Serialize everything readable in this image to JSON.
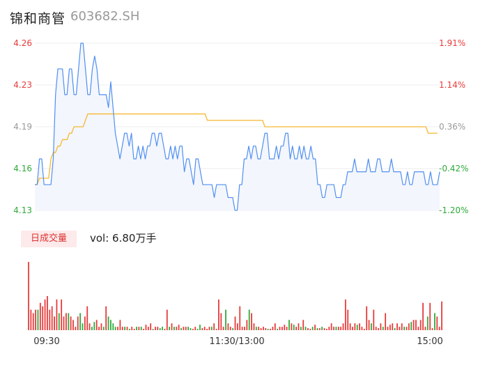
{
  "header": {
    "name": "锦和商管",
    "code": "603682.SH"
  },
  "colors": {
    "price": "#4f8ff0",
    "avg": "#f5b830",
    "up": "#e83a3a",
    "down": "#2eaa3a",
    "grid": "#eeeeee",
    "text_neutral": "#999999"
  },
  "volume_panel": {
    "badge": "日成交量",
    "vol_label": "vol: 6.80万手"
  },
  "chart_data": [
    {
      "type": "line",
      "title": "",
      "y_left_ticks": [
        "4.26",
        "4.23",
        "4.19",
        "4.16",
        "4.13"
      ],
      "y_right_ticks": [
        "1.91%",
        "1.14%",
        "0.36%",
        "-0.42%",
        "-1.20%"
      ],
      "ylim": [
        4.13,
        4.26
      ],
      "x_tick_labels": [
        "09:30",
        "11:30/13:00",
        "15:00"
      ],
      "series": [
        {
          "values": [
            4.15,
            4.15,
            4.17,
            4.17,
            4.15,
            4.15,
            4.15,
            4.15,
            4.17,
            4.22,
            4.24,
            4.24,
            4.24,
            4.22,
            4.22,
            4.24,
            4.24,
            4.22,
            4.22,
            4.24,
            4.26,
            4.26,
            4.24,
            4.22,
            4.22,
            4.24,
            4.25,
            4.24,
            4.22,
            4.22,
            4.22,
            4.22,
            4.21,
            4.23,
            4.21,
            4.19,
            4.18,
            4.17,
            4.18,
            4.19,
            4.19,
            4.18,
            4.19,
            4.17,
            4.17,
            4.18,
            4.17,
            4.18,
            4.17,
            4.18,
            4.18,
            4.19,
            4.19,
            4.18,
            4.19,
            4.19,
            4.18,
            4.17,
            4.17,
            4.18,
            4.17,
            4.18,
            4.17,
            4.18,
            4.18,
            4.16,
            4.17,
            4.17,
            4.16,
            4.15,
            4.17,
            4.17,
            4.16,
            4.15,
            4.15,
            4.15,
            4.15,
            4.15,
            4.14,
            4.15,
            4.15,
            4.15,
            4.15,
            4.15,
            4.14,
            4.14,
            4.14,
            4.13,
            4.13,
            4.15,
            4.15,
            4.17,
            4.17,
            4.18,
            4.17,
            4.18,
            4.18,
            4.17,
            4.17,
            4.18,
            4.19,
            4.19,
            4.17,
            4.17,
            4.17,
            4.18,
            4.17,
            4.18,
            4.18,
            4.19,
            4.19,
            4.17,
            4.18,
            4.17,
            4.17,
            4.18,
            4.17,
            4.18,
            4.17,
            4.17,
            4.18,
            4.17,
            4.17,
            4.15,
            4.15,
            4.14,
            4.14,
            4.15,
            4.15,
            4.15,
            4.15,
            4.14,
            4.14,
            4.14,
            4.15,
            4.15,
            4.16,
            4.16,
            4.16,
            4.17,
            4.16,
            4.16,
            4.16,
            4.16,
            4.16,
            4.17,
            4.16,
            4.16,
            4.16,
            4.17,
            4.17,
            4.16,
            4.16,
            4.16,
            4.16,
            4.17,
            4.16,
            4.16,
            4.16,
            4.16,
            4.15,
            4.15,
            4.16,
            4.15,
            4.15,
            4.16,
            4.16,
            4.16,
            4.16,
            4.16,
            4.15,
            4.15,
            4.16,
            4.15,
            4.15,
            4.15,
            4.16
          ],
          "color": "#4f8ff0"
        },
        {
          "values": [
            4.15,
            4.15,
            4.155,
            4.155,
            4.155,
            4.155,
            4.155,
            4.17,
            4.175,
            4.175,
            4.18,
            4.18,
            4.185,
            4.185,
            4.185,
            4.19,
            4.19,
            4.195,
            4.195,
            4.195,
            4.195,
            4.195,
            4.2,
            4.205,
            4.205,
            4.205,
            4.205,
            4.205,
            4.205,
            4.205,
            4.205,
            4.205,
            4.205,
            4.205,
            4.205,
            4.205,
            4.205,
            4.205,
            4.205,
            4.205,
            4.205,
            4.205,
            4.205,
            4.205,
            4.205,
            4.205,
            4.205,
            4.205,
            4.205,
            4.205,
            4.205,
            4.205,
            4.205,
            4.205,
            4.205,
            4.205,
            4.205,
            4.205,
            4.205,
            4.205,
            4.205,
            4.205,
            4.205,
            4.205,
            4.205,
            4.205,
            4.205,
            4.205,
            4.205,
            4.205,
            4.205,
            4.205,
            4.205,
            4.205,
            4.205,
            4.2,
            4.2,
            4.2,
            4.2,
            4.2,
            4.2,
            4.2,
            4.2,
            4.2,
            4.2,
            4.2,
            4.2,
            4.2,
            4.2,
            4.2,
            4.2,
            4.2,
            4.2,
            4.2,
            4.2,
            4.2,
            4.2,
            4.2,
            4.2,
            4.2,
            4.195,
            4.195,
            4.195,
            4.195,
            4.195,
            4.195,
            4.195,
            4.195,
            4.195,
            4.195,
            4.195,
            4.195,
            4.195,
            4.195,
            4.195,
            4.195,
            4.195,
            4.195,
            4.195,
            4.195,
            4.195,
            4.195,
            4.195,
            4.195,
            4.195,
            4.195,
            4.195,
            4.195,
            4.195,
            4.195,
            4.195,
            4.195,
            4.195,
            4.195,
            4.195,
            4.195,
            4.195,
            4.195,
            4.195,
            4.195,
            4.195,
            4.195,
            4.195,
            4.195,
            4.195,
            4.195,
            4.195,
            4.195,
            4.195,
            4.195,
            4.195,
            4.195,
            4.195,
            4.195,
            4.195,
            4.195,
            4.195,
            4.195,
            4.195,
            4.195,
            4.195,
            4.195,
            4.195,
            4.195,
            4.195,
            4.195,
            4.195,
            4.195,
            4.195,
            4.195,
            4.195,
            4.19,
            4.19,
            4.19,
            4.19,
            4.19
          ],
          "color": "#f5b830"
        }
      ]
    },
    {
      "type": "bar",
      "title": "",
      "ylim": [
        0,
        100
      ],
      "values": [
        100,
        30,
        25,
        30,
        30,
        40,
        35,
        45,
        50,
        30,
        35,
        20,
        45,
        25,
        45,
        20,
        25,
        25,
        20,
        15,
        5,
        20,
        25,
        10,
        20,
        35,
        10,
        5,
        12,
        15,
        5,
        10,
        5,
        35,
        20,
        15,
        10,
        5,
        5,
        15,
        5,
        5,
        5,
        2,
        5,
        2,
        5,
        5,
        5,
        2,
        8,
        5,
        10,
        2,
        5,
        5,
        3,
        5,
        2,
        30,
        5,
        10,
        5,
        5,
        8,
        3,
        5,
        5,
        5,
        3,
        2,
        5,
        2,
        8,
        3,
        5,
        2,
        5,
        5,
        10,
        2,
        45,
        25,
        5,
        30,
        10,
        5,
        3,
        20,
        10,
        35,
        5,
        5,
        15,
        30,
        25,
        10,
        5,
        5,
        3,
        5,
        3,
        2,
        2,
        5,
        10,
        2,
        5,
        5,
        8,
        5,
        15,
        10,
        8,
        5,
        10,
        5,
        15,
        5,
        3,
        2,
        5,
        8,
        3,
        3,
        5,
        3,
        2,
        5,
        10,
        5,
        5,
        5,
        5,
        10,
        45,
        30,
        10,
        5,
        10,
        8,
        10,
        5,
        2,
        35,
        15,
        10,
        30,
        5,
        3,
        10,
        5,
        25,
        5,
        8,
        10,
        3,
        10,
        5,
        10,
        5,
        5,
        10,
        12,
        15,
        15,
        5,
        15,
        40,
        5,
        20,
        40,
        3,
        25,
        20,
        5,
        42
      ]
    }
  ]
}
